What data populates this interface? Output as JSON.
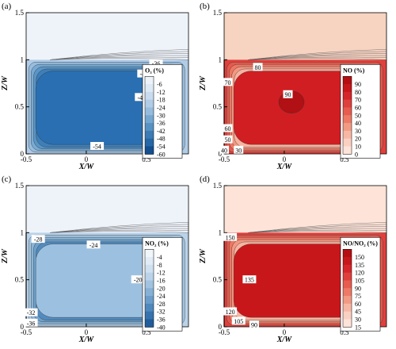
{
  "chart_data": [
    {
      "type": "heatmap",
      "panel_label": "(a)",
      "xlabel": "X/W",
      "ylabel": "Z/W",
      "x_ticks": [
        "-0.5",
        "0",
        "0.5"
      ],
      "y_ticks": [
        "0",
        "0.5",
        "1",
        "1.5"
      ],
      "xlim": [
        -0.5,
        0.85
      ],
      "ylim": [
        0,
        1.5
      ],
      "colorbar": {
        "title": "O₃ (%)",
        "ticks": [
          -6,
          -12,
          -18,
          -24,
          -30,
          -36,
          -42,
          -48,
          -54,
          -60
        ],
        "colors": [
          "#eef3fa",
          "#dde9f4",
          "#c9dbee",
          "#b1cce6",
          "#95bbdd",
          "#74a7d1",
          "#5692c4",
          "#3b7cb6",
          "#2667a6",
          "#144f8f",
          "#0b3f78"
        ]
      },
      "canyon_fill": "#2a6fb2",
      "above_fill": "#eef3fa",
      "contour_labels": [
        {
          "text": "-36",
          "x": 0.58,
          "y": 0.96
        },
        {
          "text": "-42",
          "x": 0.48,
          "y": 0.85
        },
        {
          "text": "-48",
          "x": 0.46,
          "y": 0.6
        },
        {
          "text": "-54",
          "x": 0.09,
          "y": 0.08
        }
      ]
    },
    {
      "type": "heatmap",
      "panel_label": "(b)",
      "xlabel": "X/W",
      "ylabel": "Z/W",
      "x_ticks": [
        "-0.5",
        "0",
        "0.5"
      ],
      "y_ticks": [
        "0",
        "0.5",
        "1",
        "1.5"
      ],
      "xlim": [
        -0.5,
        0.85
      ],
      "ylim": [
        0,
        1.5
      ],
      "colorbar": {
        "title": "NO (%)",
        "ticks": [
          90,
          80,
          70,
          60,
          50,
          40,
          30,
          20,
          10,
          0
        ],
        "colors": [
          "#b50e12",
          "#c8171b",
          "#d6262b",
          "#e0403c",
          "#e75c4f",
          "#ee7a66",
          "#f39a84",
          "#f7b7a3",
          "#fad0c1",
          "#fde3d8",
          "#fff0ea"
        ]
      },
      "canyon_fill": "#d11e22",
      "above_fill": "#f7d3c2",
      "core_fill": "#b11014",
      "contour_labels": [
        {
          "text": "80",
          "x": -0.22,
          "y": 0.92
        },
        {
          "text": "70",
          "x": -0.47,
          "y": 0.76
        },
        {
          "text": "90",
          "x": 0.03,
          "y": 0.63
        },
        {
          "text": "60",
          "x": -0.47,
          "y": 0.27
        },
        {
          "text": "50",
          "x": -0.47,
          "y": 0.15
        },
        {
          "text": "40",
          "x": -0.5,
          "y": 0.04
        },
        {
          "text": "30",
          "x": -0.38,
          "y": 0.04
        }
      ]
    },
    {
      "type": "heatmap",
      "panel_label": "(c)",
      "xlabel": "X/W",
      "ylabel": "Z/W",
      "x_ticks": [
        "-0.5",
        "0",
        "0.5"
      ],
      "y_ticks": [
        "0",
        "0.5",
        "1",
        "1.5"
      ],
      "xlim": [
        -0.5,
        0.85
      ],
      "ylim": [
        0,
        1.5
      ],
      "colorbar": {
        "title": "NO₂ (%)",
        "ticks": [
          -4,
          -8,
          -12,
          -16,
          -20,
          -24,
          -28,
          -32,
          -36,
          -40
        ],
        "colors": [
          "#f1f6fb",
          "#e1ecf6",
          "#cfe0f0",
          "#bad3e9",
          "#a1c3e0",
          "#86b1d6",
          "#6a9dca",
          "#4f88bd",
          "#3673ae",
          "#215d9c",
          "#134887"
        ]
      },
      "canyon_fill": "#9cc1e0",
      "above_fill": "#eef3fa",
      "contour_labels": [
        {
          "text": "-28",
          "x": -0.4,
          "y": 0.93
        },
        {
          "text": "-24",
          "x": 0.06,
          "y": 0.87
        },
        {
          "text": "-20",
          "x": 0.43,
          "y": 0.5
        },
        {
          "text": "-32",
          "x": -0.46,
          "y": 0.15
        },
        {
          "text": "-36",
          "x": -0.46,
          "y": 0.04
        }
      ]
    },
    {
      "type": "heatmap",
      "panel_label": "(d)",
      "xlabel": "X/W",
      "ylabel": "Z/W",
      "x_ticks": [
        "-0.5",
        "0",
        "0.5"
      ],
      "y_ticks": [
        "0",
        "0.5",
        "1",
        "1.5"
      ],
      "xlim": [
        -0.5,
        0.85
      ],
      "ylim": [
        0,
        1.5
      ],
      "colorbar": {
        "title": "NO/NO₂ (%)",
        "ticks": [
          150,
          135,
          120,
          105,
          90,
          75,
          60,
          45,
          30,
          15
        ],
        "colors": [
          "#b50e12",
          "#c8171b",
          "#d6262b",
          "#e0403c",
          "#e75c4f",
          "#ee7a66",
          "#f39a84",
          "#f7b7a3",
          "#fad0c1",
          "#fde3d8",
          "#fff0ea"
        ]
      },
      "canyon_fill": "#c8171b",
      "above_fill": "#fde3d8",
      "contour_labels": [
        {
          "text": "150",
          "x": -0.45,
          "y": 0.95
        },
        {
          "text": "135",
          "x": -0.29,
          "y": 0.5
        },
        {
          "text": "120",
          "x": -0.45,
          "y": 0.16
        },
        {
          "text": "105",
          "x": -0.38,
          "y": 0.06
        },
        {
          "text": "90",
          "x": -0.25,
          "y": 0.02
        }
      ]
    }
  ]
}
